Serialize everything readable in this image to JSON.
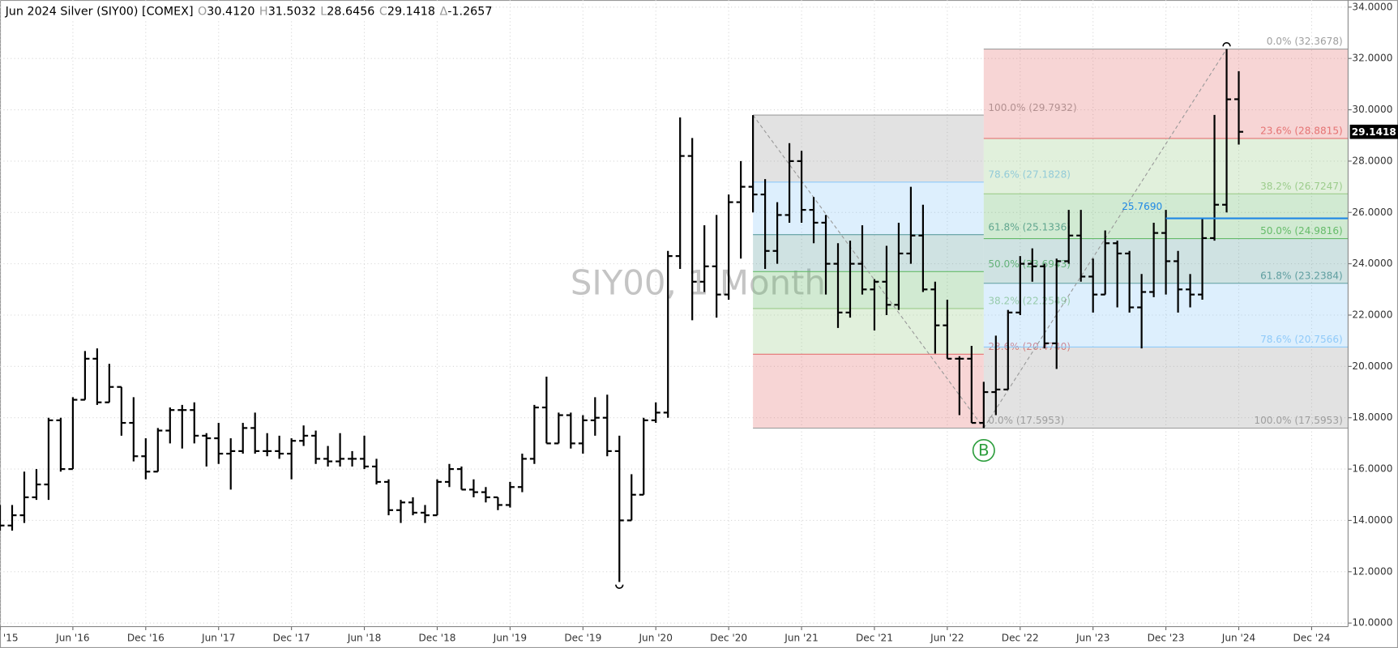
{
  "header": {
    "title": "Jun 2024 Silver (SIY00) [COMEX]",
    "fields": [
      {
        "key": "O",
        "value": "30.4120"
      },
      {
        "key": "H",
        "value": "31.5032"
      },
      {
        "key": "L",
        "value": "28.6456"
      },
      {
        "key": "C",
        "value": "29.1418"
      },
      {
        "key": "Δ",
        "value": "-1.2657"
      }
    ]
  },
  "chart_data": {
    "type": "ohlc",
    "watermark": "SIY00, 1 Month",
    "color": "#000000",
    "grid": true,
    "x": [
      "2015-12",
      "2016-01",
      "2016-02",
      "2016-03",
      "2016-04",
      "2016-05",
      "2016-06",
      "2016-07",
      "2016-08",
      "2016-09",
      "2016-10",
      "2016-11",
      "2016-12",
      "2017-01",
      "2017-02",
      "2017-03",
      "2017-04",
      "2017-05",
      "2017-06",
      "2017-07",
      "2017-08",
      "2017-09",
      "2017-10",
      "2017-11",
      "2017-12",
      "2018-01",
      "2018-02",
      "2018-03",
      "2018-04",
      "2018-05",
      "2018-06",
      "2018-07",
      "2018-08",
      "2018-09",
      "2018-10",
      "2018-11",
      "2018-12",
      "2019-01",
      "2019-02",
      "2019-03",
      "2019-04",
      "2019-05",
      "2019-06",
      "2019-07",
      "2019-08",
      "2019-09",
      "2019-10",
      "2019-11",
      "2019-12",
      "2020-01",
      "2020-02",
      "2020-03",
      "2020-04",
      "2020-05",
      "2020-06",
      "2020-07",
      "2020-08",
      "2020-09",
      "2020-10",
      "2020-11",
      "2020-12",
      "2021-01",
      "2021-02",
      "2021-03",
      "2021-04",
      "2021-05",
      "2021-06",
      "2021-07",
      "2021-08",
      "2021-09",
      "2021-10",
      "2021-11",
      "2021-12",
      "2022-01",
      "2022-02",
      "2022-03",
      "2022-04",
      "2022-05",
      "2022-06",
      "2022-07",
      "2022-08",
      "2022-09",
      "2022-10",
      "2022-11",
      "2022-12",
      "2023-01",
      "2023-02",
      "2023-03",
      "2023-04",
      "2023-05",
      "2023-06",
      "2023-07",
      "2023-08",
      "2023-09",
      "2023-10",
      "2023-11",
      "2023-12",
      "2024-01",
      "2024-02",
      "2024-03",
      "2024-04",
      "2024-05",
      "2024-06"
    ],
    "open": [
      13.9,
      13.8,
      14.2,
      14.9,
      15.4,
      17.9,
      16.0,
      18.7,
      20.3,
      18.6,
      19.2,
      17.8,
      16.5,
      15.9,
      17.5,
      18.3,
      18.3,
      17.3,
      17.2,
      16.6,
      16.7,
      17.6,
      16.7,
      16.7,
      16.6,
      17.1,
      17.3,
      16.4,
      16.3,
      16.4,
      16.4,
      16.1,
      15.5,
      14.4,
      14.7,
      14.3,
      14.2,
      15.5,
      16.0,
      15.2,
      15.1,
      14.9,
      14.6,
      15.3,
      16.4,
      18.4,
      17.0,
      18.1,
      17.0,
      17.9,
      18.0,
      16.7,
      14.0,
      15.0,
      17.9,
      18.2,
      24.3,
      28.2,
      23.3,
      23.9,
      22.8,
      26.4,
      27.0,
      26.7,
      24.5,
      25.9,
      28.0,
      26.1,
      25.6,
      24.0,
      22.1,
      24.0,
      23.0,
      23.3,
      22.4,
      24.4,
      25.1,
      23.0,
      21.6,
      20.3,
      20.3,
      17.8,
      19.0,
      19.1,
      22.1,
      24.0,
      23.9,
      20.9,
      24.1,
      25.1,
      23.5,
      22.8,
      24.8,
      24.4,
      22.3,
      22.9,
      25.2,
      24.1,
      23.0,
      22.8,
      25.0,
      26.3,
      30.412
    ],
    "high": [
      14.6,
      14.6,
      15.9,
      16.0,
      18.0,
      18.0,
      18.8,
      20.6,
      20.7,
      20.1,
      19.2,
      18.8,
      17.2,
      17.6,
      18.4,
      18.5,
      18.6,
      17.4,
      17.8,
      17.2,
      17.8,
      18.2,
      17.4,
      17.3,
      17.2,
      17.7,
      17.5,
      16.9,
      17.4,
      16.7,
      17.3,
      16.4,
      15.6,
      14.8,
      14.9,
      14.6,
      15.6,
      16.2,
      16.1,
      15.6,
      15.3,
      14.9,
      15.5,
      16.6,
      18.5,
      19.6,
      18.2,
      18.2,
      18.1,
      18.8,
      18.9,
      17.3,
      15.8,
      18.0,
      18.6,
      24.5,
      29.7,
      28.9,
      25.5,
      25.9,
      26.7,
      28.0,
      29.7932,
      27.3,
      26.4,
      28.7,
      28.4,
      26.6,
      25.9,
      24.8,
      24.9,
      25.5,
      23.4,
      24.7,
      25.6,
      27.0,
      26.3,
      23.3,
      22.6,
      20.4,
      20.8,
      19.4,
      21.2,
      22.2,
      24.3,
      24.6,
      24.0,
      24.2,
      26.1,
      26.1,
      24.2,
      25.3,
      24.9,
      24.5,
      23.6,
      25.6,
      26.1,
      24.5,
      23.6,
      25.8,
      29.8,
      32.3678,
      31.5032
    ],
    "low": [
      13.6,
      13.6,
      13.9,
      14.8,
      14.8,
      15.9,
      16.0,
      18.7,
      18.5,
      18.6,
      17.3,
      16.3,
      15.6,
      15.9,
      17.0,
      16.8,
      17.0,
      16.1,
      16.2,
      15.2,
      16.6,
      16.6,
      16.5,
      16.4,
      15.6,
      16.9,
      16.2,
      16.1,
      16.1,
      16.1,
      16.0,
      15.4,
      14.2,
      13.9,
      14.2,
      13.9,
      14.2,
      15.3,
      15.2,
      14.9,
      14.7,
      14.4,
      14.5,
      15.1,
      16.2,
      17.0,
      17.0,
      16.8,
      16.6,
      17.3,
      16.5,
      11.6,
      14.0,
      15.0,
      17.8,
      18.0,
      23.8,
      21.8,
      22.9,
      21.9,
      22.6,
      24.2,
      26.0,
      23.8,
      24.0,
      25.6,
      25.6,
      24.8,
      22.8,
      21.5,
      21.9,
      22.8,
      21.4,
      22.0,
      22.2,
      24.0,
      22.9,
      20.5,
      20.3,
      18.1,
      17.8,
      17.5953,
      18.1,
      19.1,
      22.0,
      23.3,
      20.7,
      19.9,
      24.0,
      23.3,
      22.1,
      22.8,
      22.3,
      22.1,
      20.7,
      22.7,
      22.8,
      22.1,
      22.3,
      22.6,
      24.9,
      26.0,
      28.6456
    ],
    "close": [
      13.8,
      14.2,
      14.9,
      15.4,
      17.9,
      16.0,
      18.7,
      20.3,
      18.6,
      19.2,
      17.8,
      16.5,
      15.9,
      17.5,
      18.3,
      18.3,
      17.3,
      17.2,
      16.6,
      16.7,
      17.6,
      16.7,
      16.7,
      16.6,
      17.1,
      17.3,
      16.4,
      16.3,
      16.4,
      16.4,
      16.1,
      15.5,
      14.4,
      14.7,
      14.3,
      14.2,
      15.5,
      16.0,
      15.2,
      15.1,
      14.9,
      14.6,
      15.3,
      16.4,
      18.4,
      17.0,
      18.1,
      17.0,
      17.9,
      18.0,
      16.7,
      14.0,
      15.0,
      17.9,
      18.2,
      24.3,
      28.2,
      23.3,
      23.9,
      22.8,
      26.4,
      27.0,
      26.7,
      24.5,
      25.9,
      28.0,
      26.1,
      25.6,
      24.0,
      22.1,
      24.0,
      23.0,
      23.3,
      22.4,
      24.4,
      25.1,
      23.0,
      21.6,
      20.3,
      20.3,
      17.8,
      19.0,
      19.1,
      22.1,
      24.0,
      23.9,
      20.9,
      24.1,
      25.1,
      23.5,
      22.8,
      24.8,
      24.4,
      22.3,
      22.9,
      25.2,
      24.1,
      23.0,
      22.8,
      25.0,
      26.3,
      30.4075,
      29.1418
    ],
    "xlim": [
      "2015-12",
      "2025-03"
    ],
    "xticks": [
      {
        "value": "2015-12",
        "label": "'15"
      },
      {
        "value": "2016-06",
        "label": "Jun '16"
      },
      {
        "value": "2016-12",
        "label": "Dec '16"
      },
      {
        "value": "2017-06",
        "label": "Jun '17"
      },
      {
        "value": "2017-12",
        "label": "Dec '17"
      },
      {
        "value": "2018-06",
        "label": "Jun '18"
      },
      {
        "value": "2018-12",
        "label": "Dec '18"
      },
      {
        "value": "2019-06",
        "label": "Jun '19"
      },
      {
        "value": "2019-12",
        "label": "Dec '19"
      },
      {
        "value": "2020-06",
        "label": "Jun '20"
      },
      {
        "value": "2020-12",
        "label": "Dec '20"
      },
      {
        "value": "2021-06",
        "label": "Jun '21"
      },
      {
        "value": "2021-12",
        "label": "Dec '21"
      },
      {
        "value": "2022-06",
        "label": "Jun '22"
      },
      {
        "value": "2022-12",
        "label": "Dec '22"
      },
      {
        "value": "2023-06",
        "label": "Jun '23"
      },
      {
        "value": "2023-12",
        "label": "Dec '23"
      },
      {
        "value": "2024-06",
        "label": "Jun '24"
      },
      {
        "value": "2024-12",
        "label": "Dec '24"
      }
    ],
    "ylim": [
      10,
      34
    ],
    "yticks": [
      {
        "value": 10,
        "label": "10.0000"
      },
      {
        "value": 12,
        "label": "12.0000"
      },
      {
        "value": 14,
        "label": "14.0000"
      },
      {
        "value": 16,
        "label": "16.0000"
      },
      {
        "value": 18,
        "label": "18.0000"
      },
      {
        "value": 20,
        "label": "20.0000"
      },
      {
        "value": 22,
        "label": "22.0000"
      },
      {
        "value": 24,
        "label": "24.0000"
      },
      {
        "value": 26,
        "label": "26.0000"
      },
      {
        "value": 28,
        "label": "28.0000"
      },
      {
        "value": 30,
        "label": "30.0000"
      },
      {
        "value": 32,
        "label": "32.0000"
      },
      {
        "value": 34,
        "label": "34.0000"
      }
    ],
    "last_price": {
      "value": 29.1418,
      "label": "29.1418"
    },
    "fibonacci": [
      {
        "start": {
          "x": "2021-02",
          "y": 29.7932
        },
        "end": {
          "x": "2022-09",
          "y": 17.5953
        },
        "extend_right": false,
        "label_side": "right",
        "levels": [
          {
            "value": 17.5953,
            "label": "0.0% (17.5953)",
            "color": "#9e9e9e"
          },
          {
            "value": 20.474,
            "label": "23.6% (20.4740)",
            "color": "#e57373"
          },
          {
            "value": 22.2549,
            "label": "38.2% (22.2549)",
            "color": "#9ccc8c"
          },
          {
            "value": 23.6943,
            "label": "50.0% (23.6943)",
            "color": "#66bb6a"
          },
          {
            "value": 25.1336,
            "label": "61.8% (25.1336)",
            "color": "#5f9ea0"
          },
          {
            "value": 27.1828,
            "label": "78.6% (27.1828)",
            "color": "#90caf9"
          },
          {
            "value": 29.7932,
            "label": "100.0% (29.7932)",
            "color": "#9e9e9e"
          }
        ]
      },
      {
        "start": {
          "x": "2022-09",
          "y": 17.5953
        },
        "end": {
          "x": "2024-05",
          "y": 32.3678
        },
        "extend_right": true,
        "label_side": "end",
        "levels": [
          {
            "value": 32.3678,
            "label": "0.0% (32.3678)",
            "color": "#9e9e9e"
          },
          {
            "value": 28.8815,
            "label": "23.6% (28.8815)",
            "color": "#e57373"
          },
          {
            "value": 26.7247,
            "label": "38.2% (26.7247)",
            "color": "#9ccc8c"
          },
          {
            "value": 24.9816,
            "label": "50.0% (24.9816)",
            "color": "#66bb6a"
          },
          {
            "value": 23.2384,
            "label": "61.8% (23.2384)",
            "color": "#5f9ea0"
          },
          {
            "value": 20.7566,
            "label": "78.6% (20.7566)",
            "color": "#90caf9"
          },
          {
            "value": 17.5953,
            "label": "100.0% (17.5953)",
            "color": "#9e9e9e"
          }
        ]
      }
    ],
    "hlines": [
      {
        "from": "2023-12",
        "value": 25.769,
        "label": "25.7690",
        "color": "#1e88e5"
      }
    ],
    "markers": [
      {
        "x": "2022-09",
        "label": "B",
        "color": "#2e9e3e"
      }
    ]
  }
}
